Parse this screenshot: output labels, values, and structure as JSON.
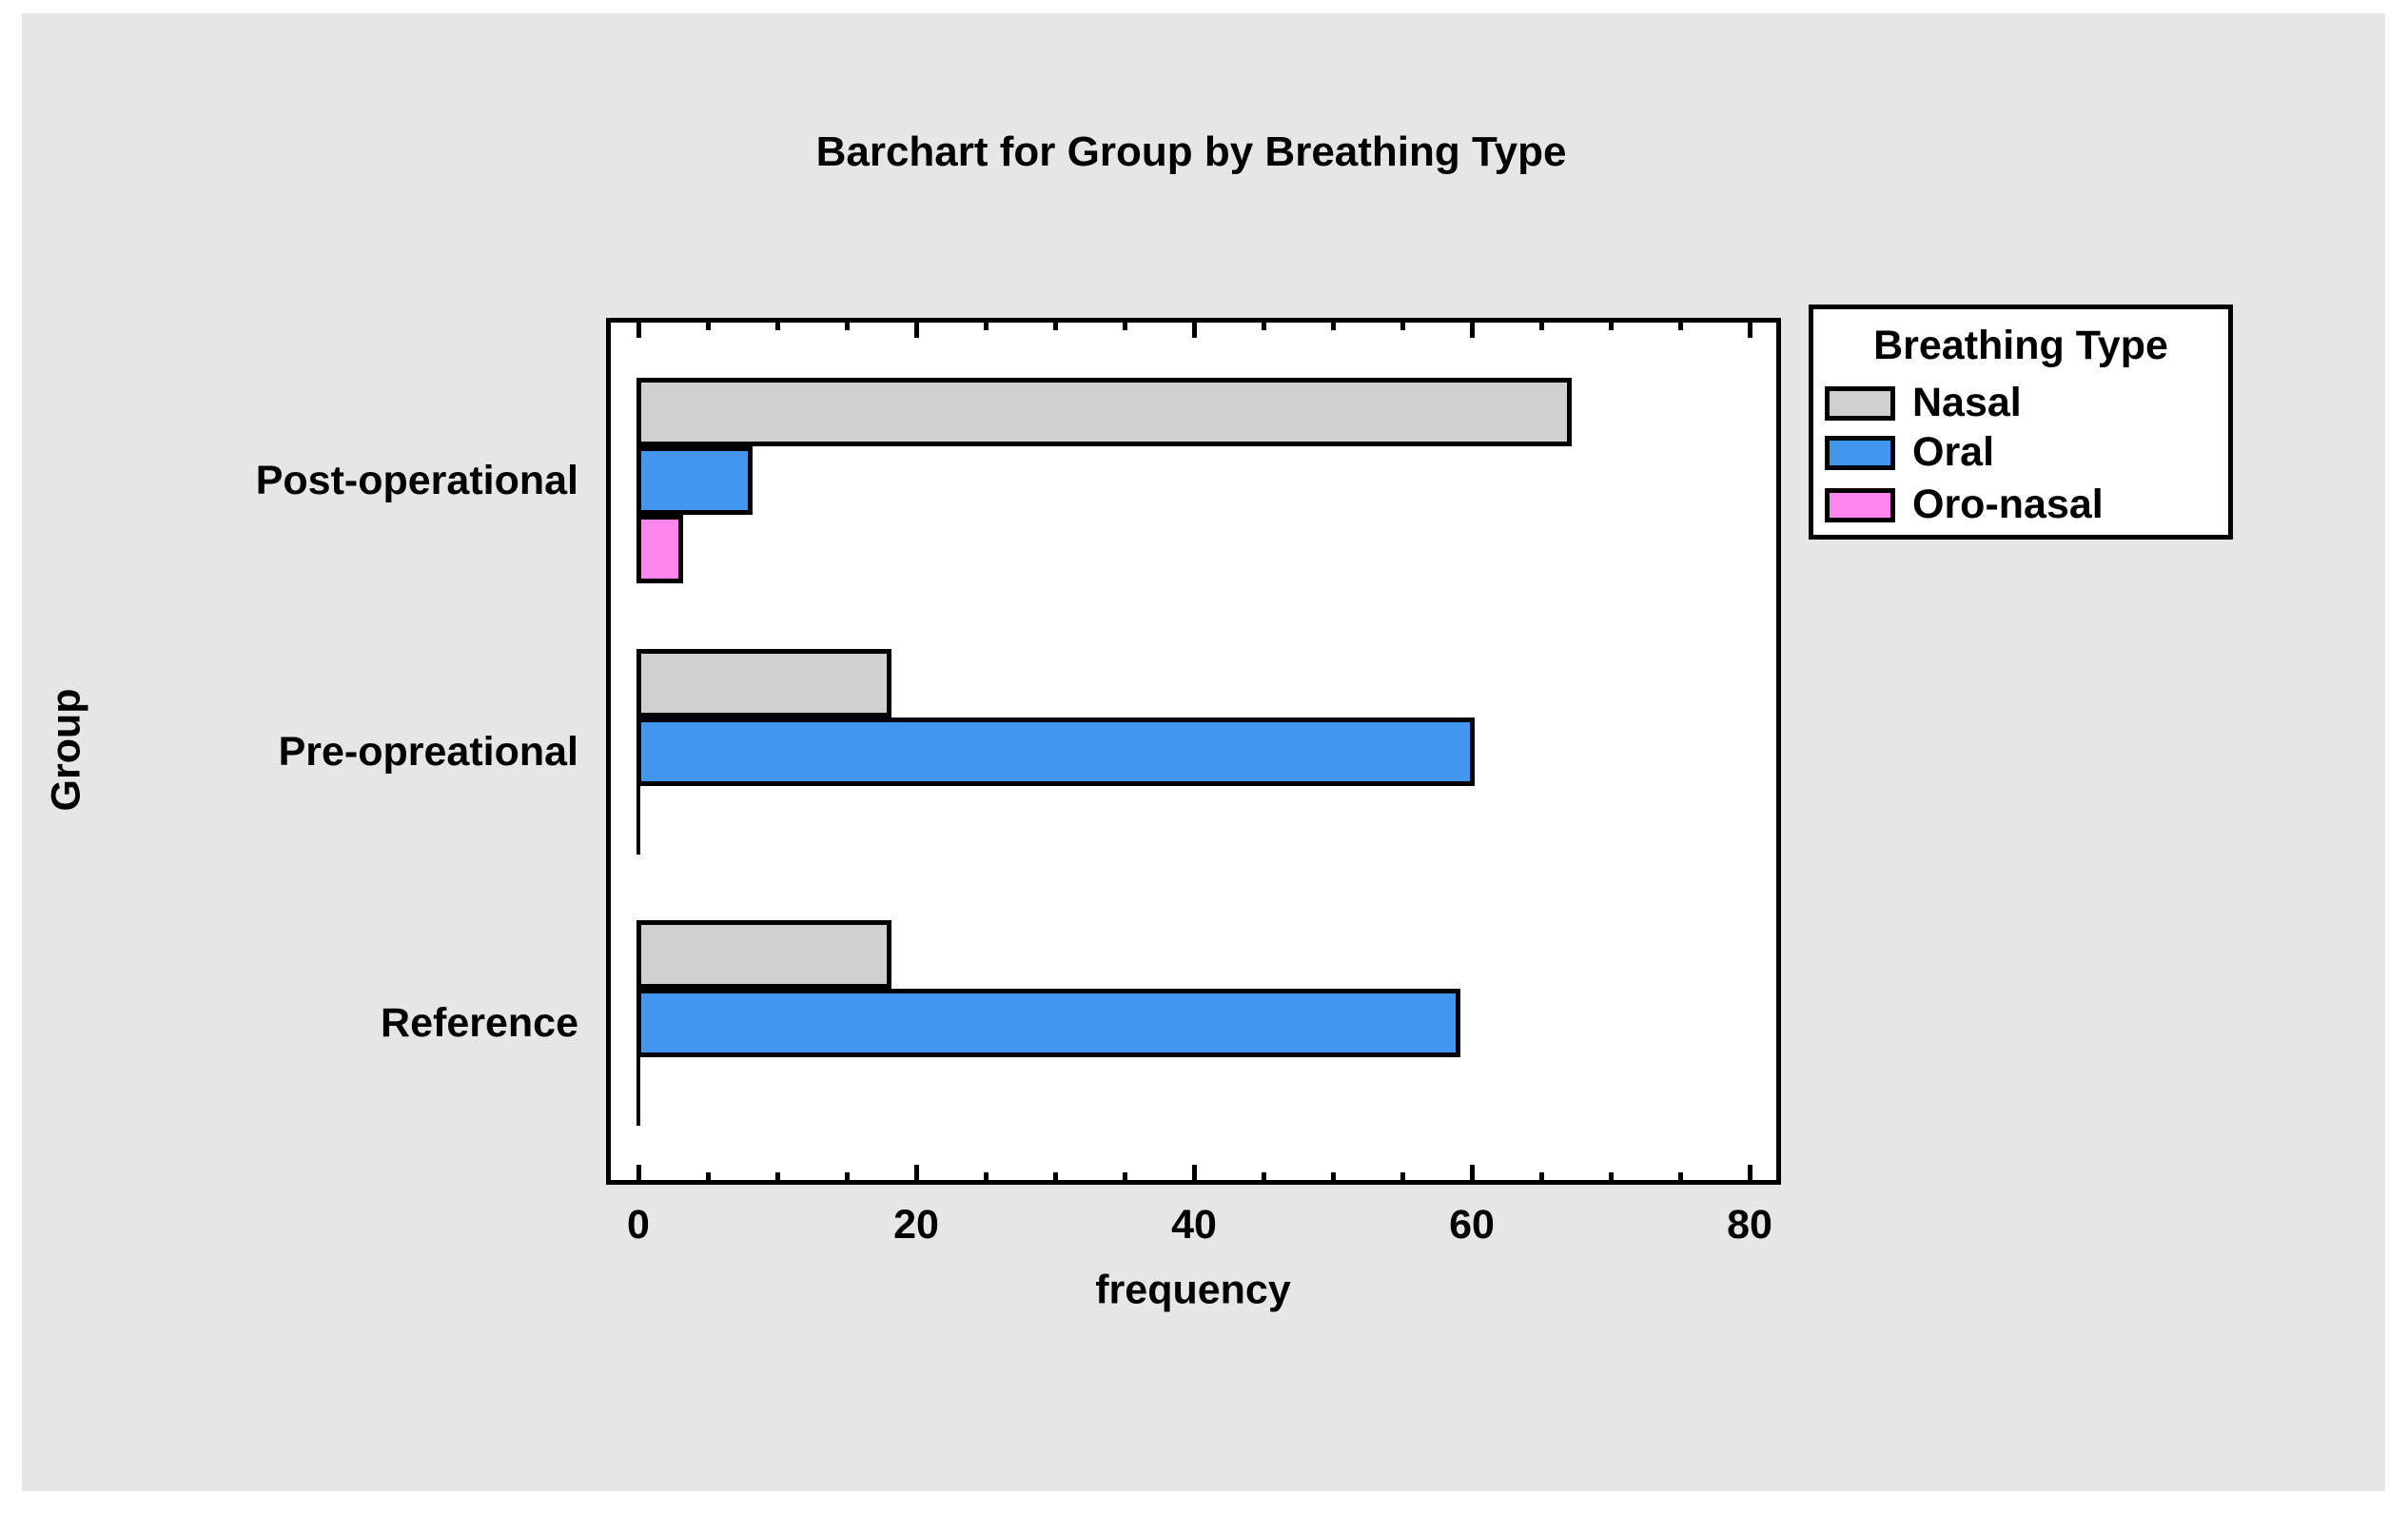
{
  "page": {
    "panel_background": "#e6e6e6",
    "plot_background": "#ffffff",
    "text_color": "#000000"
  },
  "title": "Barchart for Group by Breathing Type",
  "axes": {
    "x_label": "frequency",
    "y_label": "Group"
  },
  "legend": {
    "title": "Breathing Type",
    "entries": [
      {
        "label": "Nasal",
        "color": "#d0d0d0"
      },
      {
        "label": "Oral",
        "color": "#4296ee"
      },
      {
        "label": "Oro-nasal",
        "color": "#ff85ee"
      }
    ]
  },
  "chart_data": {
    "type": "bar",
    "orientation": "horizontal",
    "title": "Barchart for Group by Breathing Type",
    "xlabel": "frequency",
    "ylabel": "Group",
    "categories": [
      "Post-operational",
      "Pre-opreational",
      "Reference"
    ],
    "series": [
      {
        "name": "Nasal",
        "color": "#d0d0d0",
        "values": [
          67,
          18,
          18
        ]
      },
      {
        "name": "Oral",
        "color": "#4296ee",
        "values": [
          8,
          60,
          59
        ]
      },
      {
        "name": "Oro-nasal",
        "color": "#ff85ee",
        "values": [
          3,
          0,
          0
        ]
      }
    ],
    "x_ticks": [
      0,
      20,
      40,
      60,
      80
    ],
    "x_minor_tick_step": 5,
    "xlim": [
      -2.3,
      82.3
    ],
    "grid": false,
    "legend_position": "outside-top-right",
    "legend_title": "Breathing Type"
  }
}
